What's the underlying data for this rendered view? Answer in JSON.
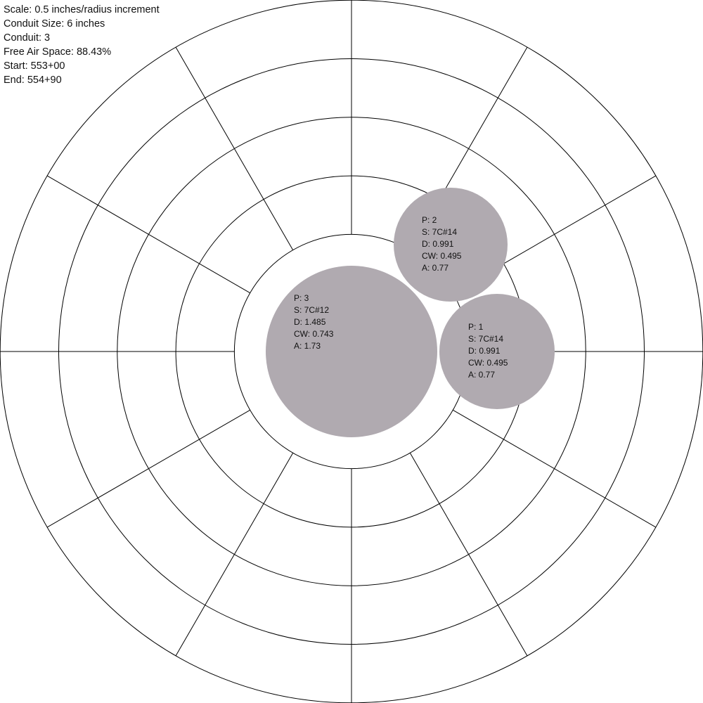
{
  "info": {
    "scale": "Scale: 0.5 inches/radius increment",
    "conduit_size": "Conduit Size: 6 inches",
    "conduit": "Conduit: 3",
    "free_air_space": "Free Air Space: 88.43%",
    "start": "Start: 553+00",
    "end": "End: 554+90"
  },
  "grid": {
    "ring_count": 6,
    "spoke_count": 12,
    "line_color": "#000000",
    "background": "#ffffff"
  },
  "cable_fill_color": "#b0aab0",
  "cables": [
    {
      "p": "P: 3",
      "s": "S: 7C#12",
      "d": "D: 1.485",
      "cw": "CW: 0.743",
      "a": "A: 1.73"
    },
    {
      "p": "P: 2",
      "s": "S: 7C#14",
      "d": "D: 0.991",
      "cw": "CW: 0.495",
      "a": "A: 0.77"
    },
    {
      "p": "P: 1",
      "s": "S: 7C#14",
      "d": "D: 0.991",
      "cw": "CW: 0.495",
      "a": "A: 0.77"
    }
  ]
}
